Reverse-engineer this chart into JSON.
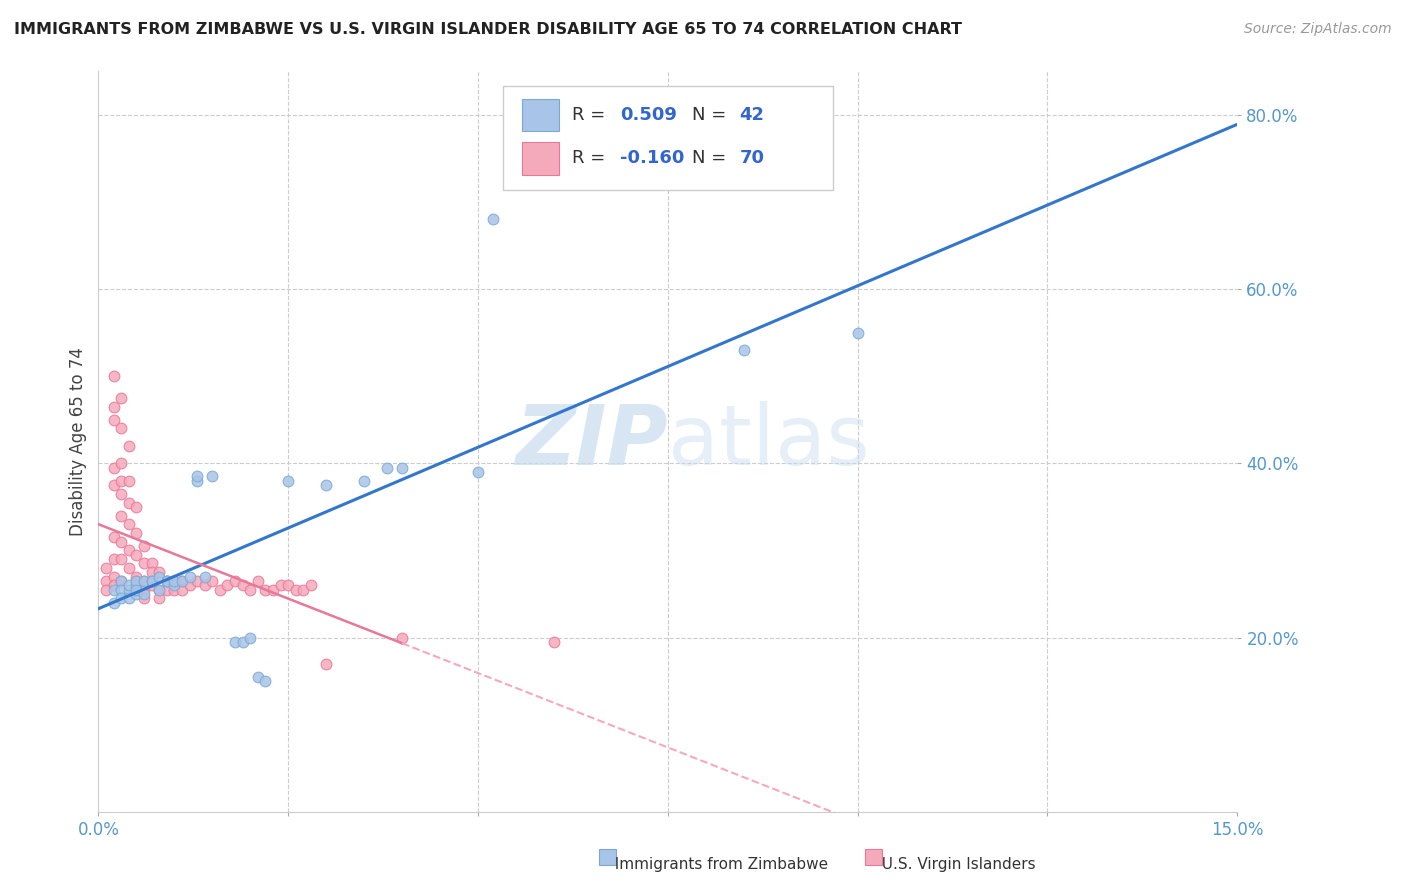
{
  "title": "IMMIGRANTS FROM ZIMBABWE VS U.S. VIRGIN ISLANDER DISABILITY AGE 65 TO 74 CORRELATION CHART",
  "source": "Source: ZipAtlas.com",
  "ylabel": "Disability Age 65 to 74",
  "xlim": [
    0.0,
    0.15
  ],
  "ylim": [
    0.0,
    0.85
  ],
  "yticks": [
    0.2,
    0.4,
    0.6,
    0.8
  ],
  "yticklabels": [
    "20.0%",
    "40.0%",
    "60.0%",
    "80.0%"
  ],
  "xtick_positions": [
    0.0,
    0.025,
    0.05,
    0.075,
    0.1,
    0.125,
    0.15
  ],
  "xticklabels": [
    "0.0%",
    "",
    "",
    "",
    "",
    "",
    "15.0%"
  ],
  "blue_face": "#A8C4E8",
  "blue_edge": "#7AAAD0",
  "pink_face": "#F5AABB",
  "pink_edge": "#E87898",
  "blue_line": "#3377CC",
  "pink_line_solid": "#E87898",
  "pink_line_dash": "#F5AABB",
  "tick_color": "#5599CC",
  "grid_color": "#CCCCCC",
  "watermark_color": "#C8DCF0",
  "legend_value_color": "#3366CC",
  "legend_label_color": "#333333",
  "R1": "0.509",
  "N1": "42",
  "R2": "-0.160",
  "N2": "70",
  "blue_x": [
    0.002,
    0.002,
    0.003,
    0.003,
    0.003,
    0.004,
    0.004,
    0.004,
    0.005,
    0.005,
    0.005,
    0.005,
    0.006,
    0.006,
    0.007,
    0.007,
    0.008,
    0.008,
    0.009,
    0.009,
    0.01,
    0.01,
    0.011,
    0.012,
    0.013,
    0.013,
    0.014,
    0.015,
    0.018,
    0.019,
    0.02,
    0.021,
    0.022,
    0.025,
    0.03,
    0.035,
    0.038,
    0.04,
    0.05,
    0.052,
    0.085,
    0.1
  ],
  "blue_y": [
    0.255,
    0.24,
    0.265,
    0.255,
    0.245,
    0.255,
    0.26,
    0.245,
    0.26,
    0.25,
    0.265,
    0.255,
    0.265,
    0.25,
    0.265,
    0.265,
    0.27,
    0.255,
    0.265,
    0.265,
    0.26,
    0.265,
    0.265,
    0.27,
    0.38,
    0.385,
    0.27,
    0.385,
    0.195,
    0.195,
    0.2,
    0.155,
    0.15,
    0.38,
    0.375,
    0.38,
    0.395,
    0.395,
    0.39,
    0.68,
    0.53,
    0.55
  ],
  "pink_x": [
    0.001,
    0.001,
    0.001,
    0.002,
    0.002,
    0.002,
    0.002,
    0.002,
    0.002,
    0.002,
    0.002,
    0.002,
    0.003,
    0.003,
    0.003,
    0.003,
    0.003,
    0.003,
    0.003,
    0.003,
    0.003,
    0.004,
    0.004,
    0.004,
    0.004,
    0.004,
    0.004,
    0.005,
    0.005,
    0.005,
    0.005,
    0.005,
    0.005,
    0.006,
    0.006,
    0.006,
    0.006,
    0.006,
    0.007,
    0.007,
    0.007,
    0.008,
    0.008,
    0.008,
    0.009,
    0.009,
    0.01,
    0.01,
    0.011,
    0.011,
    0.012,
    0.013,
    0.014,
    0.015,
    0.016,
    0.017,
    0.018,
    0.019,
    0.02,
    0.021,
    0.022,
    0.023,
    0.024,
    0.025,
    0.026,
    0.027,
    0.028,
    0.03,
    0.04,
    0.06
  ],
  "pink_y": [
    0.28,
    0.265,
    0.255,
    0.5,
    0.465,
    0.45,
    0.395,
    0.375,
    0.315,
    0.29,
    0.27,
    0.26,
    0.475,
    0.44,
    0.4,
    0.38,
    0.365,
    0.34,
    0.31,
    0.29,
    0.265,
    0.42,
    0.38,
    0.355,
    0.33,
    0.3,
    0.28,
    0.35,
    0.32,
    0.295,
    0.27,
    0.265,
    0.255,
    0.305,
    0.285,
    0.265,
    0.255,
    0.245,
    0.285,
    0.275,
    0.26,
    0.275,
    0.255,
    0.245,
    0.265,
    0.255,
    0.265,
    0.255,
    0.265,
    0.255,
    0.26,
    0.265,
    0.26,
    0.265,
    0.255,
    0.26,
    0.265,
    0.26,
    0.255,
    0.265,
    0.255,
    0.255,
    0.26,
    0.26,
    0.255,
    0.255,
    0.26,
    0.17,
    0.2,
    0.195
  ]
}
